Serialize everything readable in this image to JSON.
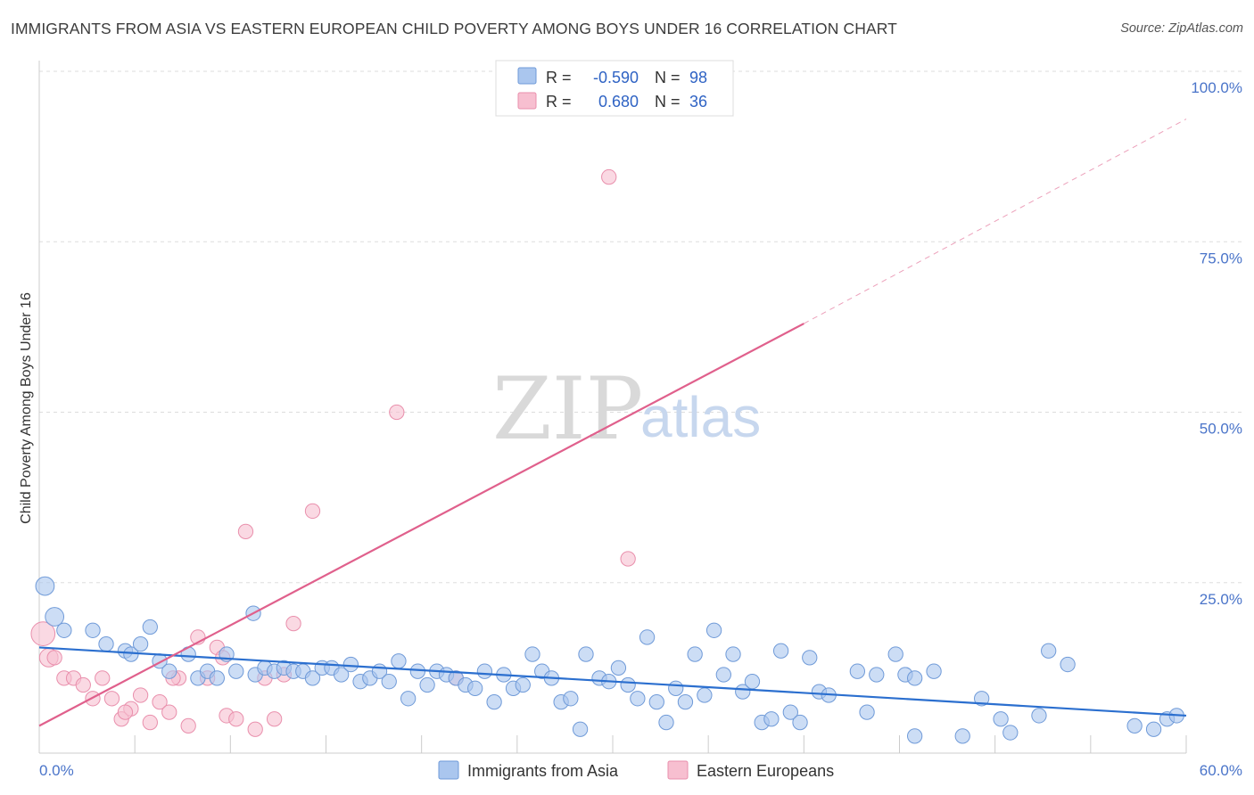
{
  "title": "IMMIGRANTS FROM ASIA VS EASTERN EUROPEAN CHILD POVERTY AMONG BOYS UNDER 16 CORRELATION CHART",
  "source": "Source: ZipAtlas.com",
  "watermark": {
    "zip": "ZIP",
    "atlas": "atlas"
  },
  "colors": {
    "asia_fill": "#aac6ee",
    "asia_stroke": "#6f9ad8",
    "asia_line": "#2b6fcf",
    "eu_fill": "#f7bfd0",
    "eu_stroke": "#e98fac",
    "eu_line": "#e0608c",
    "grid": "#dddddd",
    "axis_label": "#4a74c9"
  },
  "legend": {
    "r_label": "R =",
    "n_label": "N =",
    "rows": [
      {
        "series": "Immigrants from Asia",
        "r": "-0.590",
        "n": "98"
      },
      {
        "series": "Eastern Europeans",
        "r": "0.680",
        "n": "36"
      }
    ]
  },
  "chart_data": {
    "type": "scatter",
    "title": "IMMIGRANTS FROM ASIA VS EASTERN EUROPEAN CHILD POVERTY AMONG BOYS UNDER 16 CORRELATION CHART",
    "xlabel": "",
    "ylabel": "Child Poverty Among Boys Under 16",
    "xlim": [
      0,
      60
    ],
    "ylim": [
      0,
      100
    ],
    "x_tick_labels": [
      "0.0%",
      "60.0%"
    ],
    "y_tick_labels": [
      "25.0%",
      "50.0%",
      "75.0%",
      "100.0%"
    ],
    "y_ticks": [
      25,
      50,
      75,
      100
    ],
    "grid": true,
    "legend_position": "top-center",
    "series": [
      {
        "name": "Immigrants from Asia",
        "trend": {
          "x": [
            0,
            60
          ],
          "y": [
            15.5,
            5.5
          ]
        },
        "points": [
          [
            0.3,
            24.5,
            14
          ],
          [
            0.8,
            20,
            14
          ],
          [
            1.3,
            18,
            11
          ],
          [
            2.8,
            18,
            11
          ],
          [
            3.5,
            16,
            11
          ],
          [
            4.5,
            15,
            11
          ],
          [
            4.8,
            14.5,
            11
          ],
          [
            5.3,
            16,
            11
          ],
          [
            5.8,
            18.5,
            11
          ],
          [
            6.3,
            13.5,
            11
          ],
          [
            6.8,
            12,
            11
          ],
          [
            7.8,
            14.5,
            11
          ],
          [
            8.3,
            11,
            11
          ],
          [
            8.8,
            12,
            11
          ],
          [
            9.3,
            11,
            11
          ],
          [
            9.8,
            14.5,
            11
          ],
          [
            10.3,
            12,
            11
          ],
          [
            11.2,
            20.5,
            11
          ],
          [
            11.3,
            11.5,
            11
          ],
          [
            11.8,
            12.5,
            11
          ],
          [
            12.3,
            12,
            11
          ],
          [
            12.8,
            12.5,
            11
          ],
          [
            13.3,
            12,
            11
          ],
          [
            13.8,
            12,
            11
          ],
          [
            14.3,
            11,
            11
          ],
          [
            14.8,
            12.5,
            11
          ],
          [
            15.3,
            12.5,
            11
          ],
          [
            15.8,
            11.5,
            11
          ],
          [
            16.3,
            13,
            11
          ],
          [
            16.8,
            10.5,
            11
          ],
          [
            17.3,
            11,
            11
          ],
          [
            17.8,
            12,
            11
          ],
          [
            18.3,
            10.5,
            11
          ],
          [
            18.8,
            13.5,
            11
          ],
          [
            19.3,
            8,
            11
          ],
          [
            19.8,
            12,
            11
          ],
          [
            20.3,
            10,
            11
          ],
          [
            20.8,
            12,
            11
          ],
          [
            21.3,
            11.5,
            11
          ],
          [
            21.8,
            11,
            11
          ],
          [
            22.3,
            10,
            11
          ],
          [
            22.8,
            9.5,
            11
          ],
          [
            23.3,
            12,
            11
          ],
          [
            23.8,
            7.5,
            11
          ],
          [
            24.3,
            11.5,
            11
          ],
          [
            24.8,
            9.5,
            11
          ],
          [
            25.3,
            10,
            11
          ],
          [
            25.8,
            14.5,
            11
          ],
          [
            26.3,
            12,
            11
          ],
          [
            26.8,
            11,
            11
          ],
          [
            27.3,
            7.5,
            11
          ],
          [
            27.8,
            8,
            11
          ],
          [
            28.3,
            3.5,
            11
          ],
          [
            28.6,
            14.5,
            11
          ],
          [
            29.3,
            11,
            11
          ],
          [
            29.8,
            10.5,
            11
          ],
          [
            30.3,
            12.5,
            11
          ],
          [
            30.8,
            10,
            11
          ],
          [
            31.3,
            8,
            11
          ],
          [
            31.8,
            17,
            11
          ],
          [
            32.3,
            7.5,
            11
          ],
          [
            32.8,
            4.5,
            11
          ],
          [
            33.3,
            9.5,
            11
          ],
          [
            33.8,
            7.5,
            11
          ],
          [
            34.3,
            14.5,
            11
          ],
          [
            34.8,
            8.5,
            11
          ],
          [
            35.3,
            18,
            11
          ],
          [
            35.8,
            11.5,
            11
          ],
          [
            36.3,
            14.5,
            11
          ],
          [
            36.8,
            9,
            11
          ],
          [
            37.3,
            10.5,
            11
          ],
          [
            37.8,
            4.5,
            11
          ],
          [
            38.3,
            5,
            11
          ],
          [
            38.8,
            15,
            11
          ],
          [
            39.3,
            6,
            11
          ],
          [
            39.8,
            4.5,
            11
          ],
          [
            40.3,
            14,
            11
          ],
          [
            40.8,
            9,
            11
          ],
          [
            41.3,
            8.5,
            11
          ],
          [
            42.8,
            12,
            11
          ],
          [
            43.3,
            6,
            11
          ],
          [
            43.8,
            11.5,
            11
          ],
          [
            44.8,
            14.5,
            11
          ],
          [
            45.3,
            11.5,
            11
          ],
          [
            45.8,
            11,
            11
          ],
          [
            45.8,
            2.5,
            11
          ],
          [
            46.8,
            12,
            11
          ],
          [
            48.3,
            2.5,
            11
          ],
          [
            49.3,
            8,
            11
          ],
          [
            50.3,
            5,
            11
          ],
          [
            50.8,
            3,
            11
          ],
          [
            52.3,
            5.5,
            11
          ],
          [
            52.8,
            15,
            11
          ],
          [
            53.8,
            13,
            11
          ],
          [
            57.3,
            4,
            11
          ],
          [
            58.3,
            3.5,
            11
          ],
          [
            59.0,
            5,
            11
          ],
          [
            59.5,
            5.5,
            11
          ]
        ]
      },
      {
        "name": "Eastern Europeans",
        "trend": {
          "x": [
            0,
            40
          ],
          "y": [
            4,
            63
          ]
        },
        "trend_dashed": {
          "x": [
            40,
            60
          ],
          "y": [
            63,
            93
          ]
        },
        "points": [
          [
            0.2,
            17.5,
            18
          ],
          [
            0.5,
            14,
            14
          ],
          [
            0.8,
            14,
            11
          ],
          [
            1.3,
            11,
            11
          ],
          [
            1.8,
            11,
            11
          ],
          [
            2.3,
            10,
            11
          ],
          [
            2.8,
            8,
            11
          ],
          [
            3.3,
            11,
            11
          ],
          [
            3.8,
            8,
            11
          ],
          [
            4.3,
            5,
            11
          ],
          [
            4.8,
            6.5,
            11
          ],
          [
            5.3,
            8.5,
            11
          ],
          [
            5.8,
            4.5,
            11
          ],
          [
            6.3,
            7.5,
            11
          ],
          [
            6.8,
            6,
            11
          ],
          [
            7.3,
            11,
            11
          ],
          [
            7.8,
            4,
            11
          ],
          [
            8.3,
            17,
            11
          ],
          [
            8.8,
            11,
            11
          ],
          [
            9.3,
            15.5,
            11
          ],
          [
            9.6,
            14,
            11
          ],
          [
            9.8,
            5.5,
            11
          ],
          [
            10.3,
            5,
            11
          ],
          [
            10.8,
            32.5,
            11
          ],
          [
            11.3,
            3.5,
            11
          ],
          [
            11.8,
            11,
            11
          ],
          [
            12.3,
            5,
            11
          ],
          [
            12.8,
            11.5,
            11
          ],
          [
            13.3,
            19,
            11
          ],
          [
            14.3,
            35.5,
            11
          ],
          [
            18.7,
            50,
            11
          ],
          [
            21.8,
            11,
            11
          ],
          [
            29.8,
            84.5,
            11
          ],
          [
            30.8,
            28.5,
            11
          ],
          [
            4.5,
            6,
            11
          ],
          [
            7.0,
            11,
            11
          ]
        ]
      }
    ]
  },
  "bottom_legend": [
    {
      "label": "Immigrants from Asia"
    },
    {
      "label": "Eastern Europeans"
    }
  ]
}
